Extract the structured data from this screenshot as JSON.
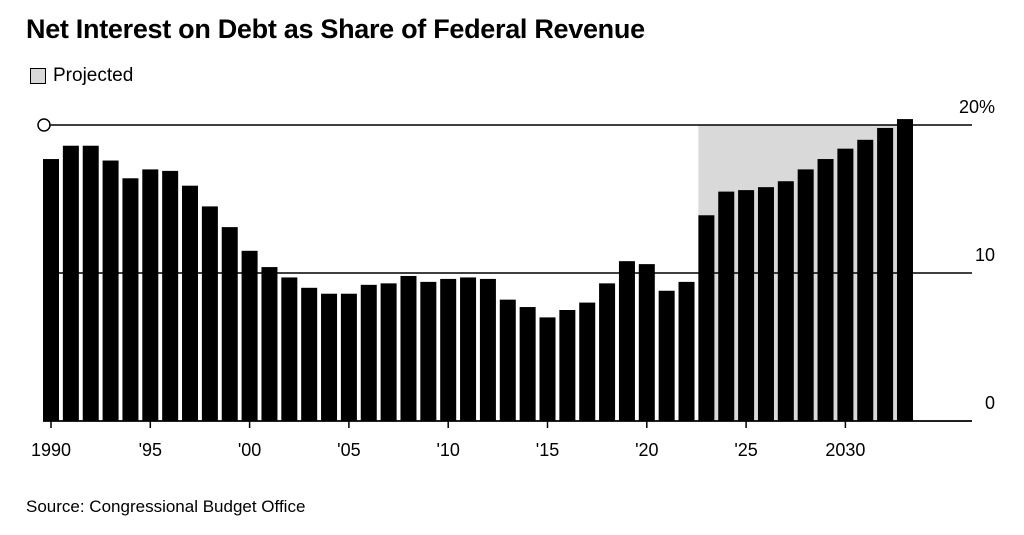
{
  "chart_data": {
    "type": "bar",
    "title": "Net Interest on Debt as Share of Federal Revenue",
    "legend": [
      {
        "label": "Projected",
        "color": "#d9d9d9"
      }
    ],
    "source": "Source: Congressional Budget Office",
    "categories": [
      1990,
      1991,
      1992,
      1993,
      1994,
      1995,
      1996,
      1997,
      1998,
      1999,
      2000,
      2001,
      2002,
      2003,
      2004,
      2005,
      2006,
      2007,
      2008,
      2009,
      2010,
      2011,
      2012,
      2013,
      2014,
      2015,
      2016,
      2017,
      2018,
      2019,
      2020,
      2021,
      2022,
      2023,
      2024,
      2025,
      2026,
      2027,
      2028,
      2029,
      2030,
      2031,
      2032,
      2033
    ],
    "values": [
      17.7,
      18.6,
      18.6,
      17.6,
      16.4,
      17.0,
      16.9,
      15.9,
      14.5,
      13.1,
      11.5,
      10.4,
      9.7,
      9.0,
      8.6,
      8.6,
      9.2,
      9.3,
      9.8,
      9.4,
      9.6,
      9.7,
      9.6,
      8.2,
      7.7,
      7.0,
      7.5,
      8.0,
      9.3,
      10.8,
      10.6,
      8.8,
      9.4,
      13.9,
      15.5,
      15.6,
      15.8,
      16.2,
      17.0,
      17.7,
      18.4,
      19.0,
      19.8,
      20.4
    ],
    "projected_from": 2023,
    "ylim": [
      0,
      20
    ],
    "y_ticks": [
      {
        "value": 0,
        "label": "0"
      },
      {
        "value": 10,
        "label": "10"
      },
      {
        "value": 20,
        "label": "20%"
      }
    ],
    "x_ticks": [
      {
        "value": 1990,
        "label": "1990"
      },
      {
        "value": 1995,
        "label": "'95"
      },
      {
        "value": 2000,
        "label": "'00"
      },
      {
        "value": 2005,
        "label": "'05"
      },
      {
        "value": 2010,
        "label": "'10"
      },
      {
        "value": 2015,
        "label": "'15"
      },
      {
        "value": 2020,
        "label": "'20"
      },
      {
        "value": 2025,
        "label": "'25"
      },
      {
        "value": 2030,
        "label": "2030"
      }
    ],
    "grid": true,
    "y_axis_position": "right",
    "legend_position": "top-left",
    "colors": {
      "bar": "#000000",
      "projected_shade": "#d9d9d9"
    }
  }
}
